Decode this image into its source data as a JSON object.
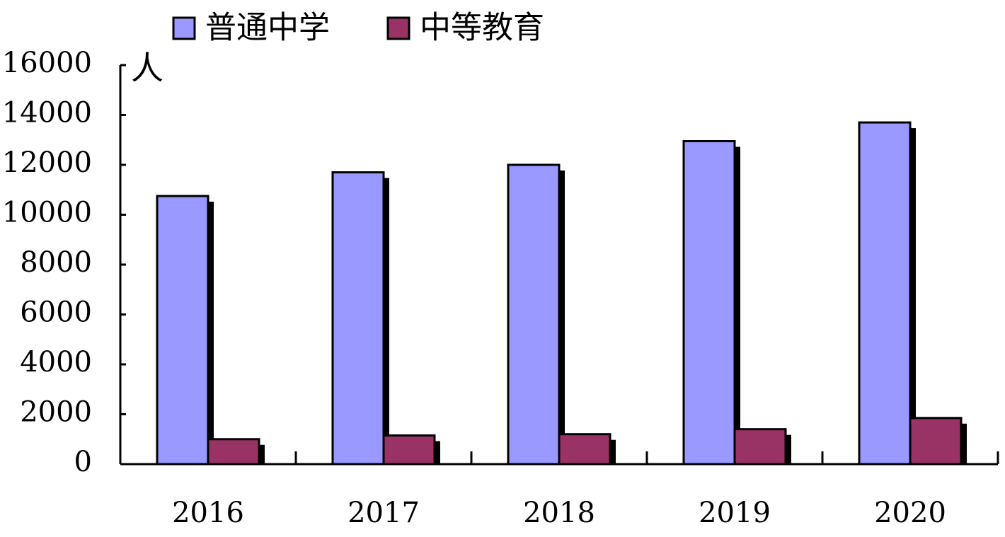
{
  "chart_data": {
    "type": "bar",
    "y_label": "人",
    "categories": [
      "2016",
      "2017",
      "2018",
      "2019",
      "2020"
    ],
    "series": [
      {
        "name": "普通中学",
        "color": "#9999ff",
        "values": [
          10750,
          11700,
          12000,
          12950,
          13700
        ]
      },
      {
        "name": "中等教育",
        "color": "#993366",
        "values": [
          1000,
          1150,
          1200,
          1400,
          1850
        ]
      }
    ],
    "ylim": [
      0,
      16000
    ],
    "yticks": [
      0,
      2000,
      4000,
      6000,
      8000,
      10000,
      12000,
      14000,
      16000
    ]
  }
}
